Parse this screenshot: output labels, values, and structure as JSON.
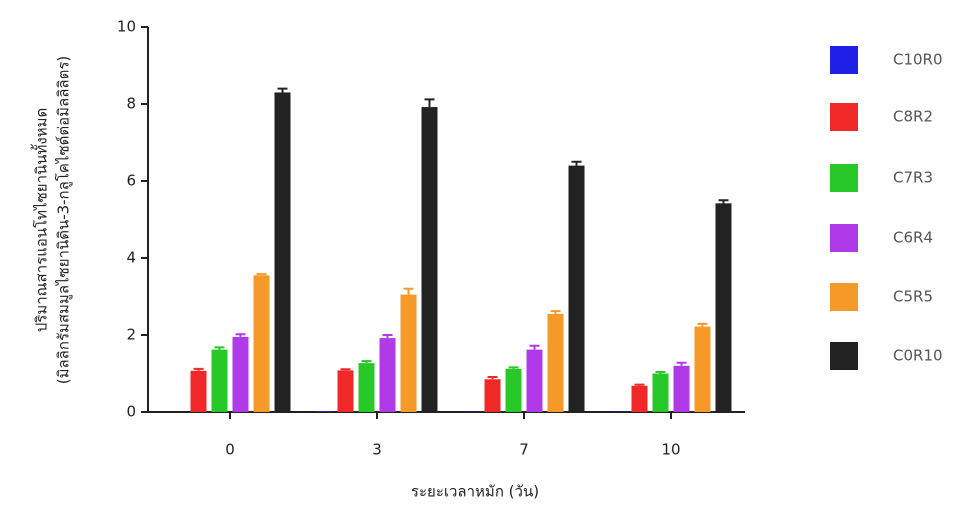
{
  "chart_data": {
    "type": "bar",
    "y_label": [
      "ปริมาณสารแอนโทไซยานินทั้งหมด",
      "(มิลลิกรัมสมมูลไซยานิดิน-3-กลูโคไซด์ต่อมิลลิลิตร)"
    ],
    "x_label": "ระยะเวลาหมัก (วัน)",
    "categories": [
      "0",
      "3",
      "7",
      "10"
    ],
    "ylim": [
      0,
      10
    ],
    "yticks": [
      0,
      2,
      4,
      6,
      8,
      10
    ],
    "series": [
      {
        "name": "C10R0",
        "color": "#1f1fe8",
        "values": [
          0,
          0.02,
          0.01,
          0.01
        ],
        "errors": [
          0,
          0,
          0,
          0
        ]
      },
      {
        "name": "C8R2",
        "color": "#f02828",
        "values": [
          1.07,
          1.08,
          0.85,
          0.68
        ],
        "errors": [
          0.05,
          0.03,
          0.06,
          0.03
        ]
      },
      {
        "name": "C7R3",
        "color": "#28c828",
        "values": [
          1.62,
          1.27,
          1.12,
          1.0
        ],
        "errors": [
          0.06,
          0.05,
          0.04,
          0.04
        ]
      },
      {
        "name": "C6R4",
        "color": "#b03ae8",
        "values": [
          1.95,
          1.92,
          1.62,
          1.2
        ],
        "errors": [
          0.07,
          0.08,
          0.1,
          0.08
        ]
      },
      {
        "name": "C5R5",
        "color": "#f59a28",
        "values": [
          3.55,
          3.05,
          2.55,
          2.22
        ],
        "errors": [
          0.03,
          0.15,
          0.07,
          0.07
        ]
      },
      {
        "name": "C0R10",
        "color": "#222222",
        "values": [
          8.3,
          7.92,
          6.4,
          5.42
        ],
        "errors": [
          0.1,
          0.2,
          0.1,
          0.08
        ]
      }
    ]
  }
}
